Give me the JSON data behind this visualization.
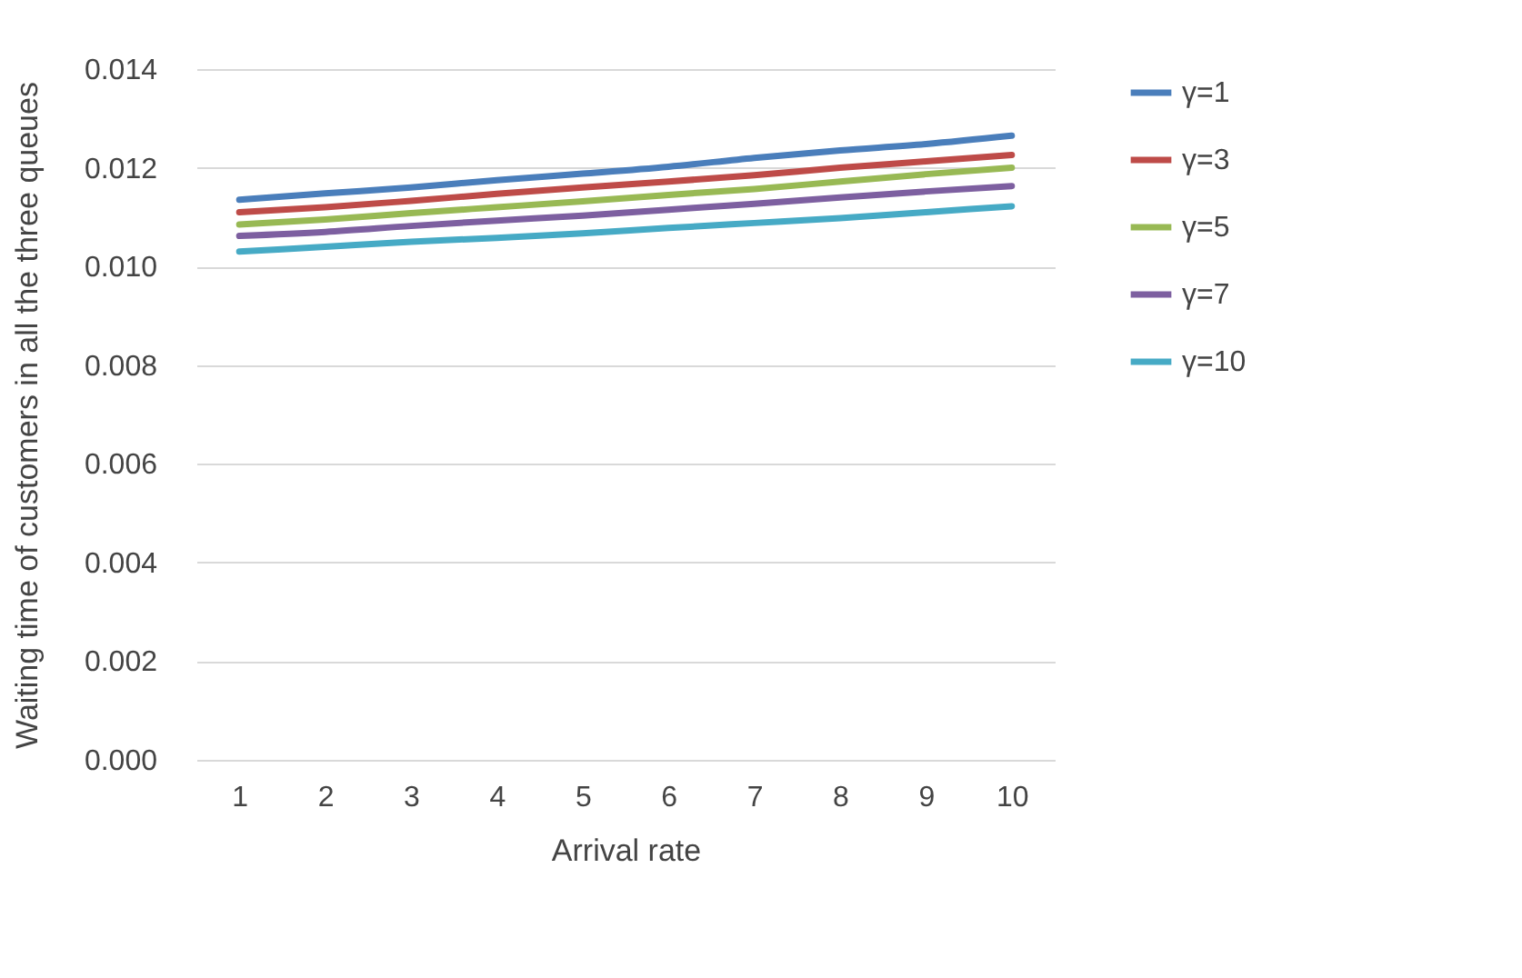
{
  "chart_data": {
    "type": "line",
    "xlabel": "Arrival rate",
    "ylabel": "Waiting time of customers in all the three queues",
    "categories": [
      "1",
      "2",
      "3",
      "4",
      "5",
      "6",
      "7",
      "8",
      "9",
      "10"
    ],
    "series": [
      {
        "name": "γ=1",
        "color": "#4a7ebb",
        "values": [
          0.01135,
          0.01148,
          0.0116,
          0.01175,
          0.01188,
          0.01202,
          0.0122,
          0.01235,
          0.01248,
          0.01265
        ]
      },
      {
        "name": "γ=3",
        "color": "#be4b48",
        "values": [
          0.0111,
          0.0112,
          0.01133,
          0.01147,
          0.0116,
          0.01172,
          0.01185,
          0.012,
          0.01213,
          0.01226
        ]
      },
      {
        "name": "γ=5",
        "color": "#98b954",
        "values": [
          0.01085,
          0.01095,
          0.01108,
          0.0112,
          0.01132,
          0.01145,
          0.01157,
          0.01172,
          0.01187,
          0.012
        ]
      },
      {
        "name": "γ=7",
        "color": "#7d5fa0",
        "values": [
          0.01062,
          0.0107,
          0.01082,
          0.01093,
          0.01103,
          0.01115,
          0.01127,
          0.0114,
          0.01152,
          0.01163
        ]
      },
      {
        "name": "γ=10",
        "color": "#46aac5",
        "values": [
          0.0103,
          0.0104,
          0.0105,
          0.01058,
          0.01067,
          0.01078,
          0.01088,
          0.01098,
          0.0111,
          0.01122
        ]
      }
    ],
    "ylim": [
      0,
      0.014
    ],
    "yticks": [
      {
        "value": 0,
        "label": "0.000"
      },
      {
        "value": 0.002,
        "label": "0.002"
      },
      {
        "value": 0.004,
        "label": "0.004"
      },
      {
        "value": 0.006,
        "label": "0.006"
      },
      {
        "value": 0.008,
        "label": "0.008"
      },
      {
        "value": 0.01,
        "label": "0.010"
      },
      {
        "value": 0.012,
        "label": "0.012"
      },
      {
        "value": 0.014,
        "label": "0.014"
      }
    ],
    "grid": "y",
    "legend": "right",
    "marker": "none",
    "line_style": "solid"
  }
}
